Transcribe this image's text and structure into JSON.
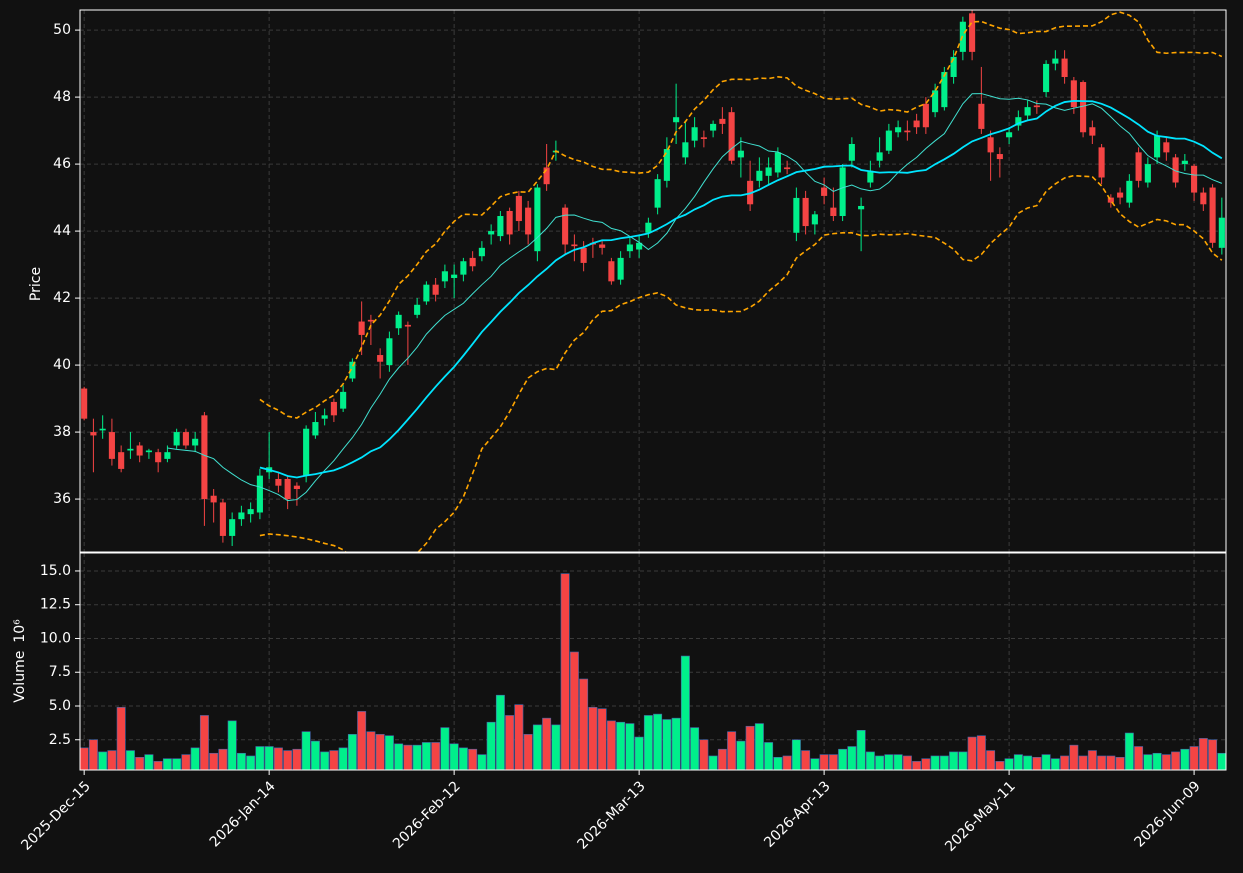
{
  "chart_data": {
    "type": "candlestick",
    "categories": [
      "2025-Dec-15",
      null,
      null,
      null,
      null,
      null,
      null,
      null,
      null,
      null,
      null,
      null,
      null,
      null,
      null,
      null,
      null,
      null,
      null,
      null,
      "2026-Jan-14",
      null,
      null,
      null,
      null,
      null,
      null,
      null,
      null,
      null,
      null,
      null,
      null,
      null,
      null,
      null,
      null,
      null,
      null,
      null,
      "2026-Feb-12",
      null,
      null,
      null,
      null,
      null,
      null,
      null,
      null,
      null,
      null,
      null,
      null,
      null,
      null,
      null,
      null,
      null,
      null,
      null,
      "2026-Mar-13",
      null,
      null,
      null,
      null,
      null,
      null,
      null,
      null,
      null,
      null,
      null,
      null,
      null,
      null,
      null,
      null,
      null,
      null,
      null,
      "2026-Apr-13",
      null,
      null,
      null,
      null,
      null,
      null,
      null,
      null,
      null,
      null,
      null,
      null,
      null,
      null,
      null,
      null,
      null,
      null,
      null,
      "2026-May-11",
      null,
      null,
      null,
      null,
      null,
      null,
      null,
      null,
      null,
      null,
      null,
      null,
      null,
      null,
      null,
      null,
      null,
      null,
      null,
      "2026-Jun-09",
      null,
      null,
      null
    ],
    "open": [
      39.3,
      38.0,
      38.05,
      38.0,
      37.4,
      37.45,
      37.6,
      37.4,
      37.4,
      37.2,
      37.6,
      38.0,
      37.6,
      38.5,
      36.1,
      35.9,
      34.9,
      35.4,
      35.55,
      35.6,
      36.8,
      36.6,
      36.6,
      36.4,
      36.7,
      37.9,
      38.4,
      38.9,
      38.7,
      39.6,
      41.3,
      41.35,
      40.3,
      40.0,
      41.1,
      41.2,
      41.5,
      41.9,
      42.4,
      42.5,
      42.6,
      42.7,
      43.2,
      43.25,
      43.9,
      43.85,
      44.6,
      45.05,
      44.7,
      43.4,
      45.9,
      46.35,
      44.7,
      43.6,
      43.5,
      43.65,
      43.6,
      43.1,
      42.55,
      43.4,
      43.45,
      43.95,
      44.7,
      45.5,
      47.25,
      46.2,
      46.7,
      46.8,
      47.0,
      47.35,
      47.55,
      46.2,
      45.5,
      45.5,
      45.65,
      45.75,
      45.9,
      43.95,
      44.99,
      44.2,
      45.3,
      44.7,
      44.45,
      46.1,
      44.65,
      45.45,
      46.1,
      46.4,
      46.95,
      47.0,
      47.3,
      47.8,
      47.55,
      47.7,
      48.6,
      49.35,
      50.5,
      47.8,
      46.8,
      46.3,
      46.8,
      47.15,
      47.45,
      47.75,
      48.15,
      49.0,
      49.15,
      48.5,
      48.45,
      47.1,
      46.5,
      45.0,
      45.15,
      44.85,
      46.35,
      45.45,
      46.2,
      46.65,
      46.2,
      46.0,
      45.95,
      45.15,
      45.3,
      43.5
    ],
    "high": [
      39.35,
      38.4,
      38.5,
      38.4,
      37.6,
      38.0,
      37.7,
      37.5,
      37.5,
      37.6,
      38.1,
      38.1,
      38.0,
      38.6,
      36.3,
      36.0,
      35.6,
      35.8,
      35.9,
      36.9,
      38.0,
      36.8,
      36.7,
      36.5,
      38.2,
      38.6,
      38.7,
      39.0,
      39.4,
      40.2,
      41.9,
      41.5,
      40.5,
      41.0,
      41.6,
      41.3,
      42.0,
      42.5,
      42.6,
      43.0,
      43.0,
      43.2,
      43.4,
      43.7,
      44.2,
      44.6,
      44.7,
      45.2,
      44.9,
      45.4,
      46.6,
      46.7,
      44.8,
      43.9,
      43.7,
      43.8,
      43.7,
      43.2,
      43.4,
      43.8,
      43.9,
      44.4,
      45.7,
      46.8,
      48.4,
      47.3,
      47.4,
      47.0,
      47.3,
      47.7,
      47.7,
      46.8,
      46.1,
      46.2,
      46.2,
      46.5,
      46.1,
      45.3,
      45.2,
      44.6,
      45.6,
      45.3,
      46.0,
      46.8,
      45.0,
      46.1,
      46.8,
      47.2,
      47.3,
      47.3,
      47.5,
      48.0,
      48.4,
      48.9,
      49.4,
      50.4,
      50.6,
      48.9,
      47.0,
      46.5,
      47.1,
      47.6,
      47.9,
      47.9,
      49.1,
      49.4,
      49.4,
      48.6,
      48.5,
      47.3,
      46.6,
      45.1,
      45.3,
      45.7,
      46.5,
      46.2,
      47.0,
      46.8,
      46.3,
      46.3,
      46.0,
      45.3,
      45.4,
      45.0
    ],
    "low": [
      38.35,
      36.8,
      37.8,
      37.0,
      36.8,
      37.2,
      37.1,
      37.2,
      36.8,
      37.1,
      37.5,
      37.5,
      37.4,
      35.2,
      35.3,
      34.7,
      34.6,
      35.2,
      35.3,
      35.4,
      36.6,
      36.2,
      35.7,
      35.8,
      36.5,
      37.8,
      38.2,
      38.3,
      38.6,
      39.5,
      40.3,
      40.6,
      39.6,
      39.8,
      40.9,
      40.0,
      41.4,
      41.8,
      41.9,
      42.3,
      42.0,
      42.5,
      42.8,
      43.1,
      43.6,
      43.7,
      43.6,
      44.0,
      43.6,
      43.1,
      45.2,
      46.1,
      43.3,
      43.1,
      42.8,
      43.2,
      43.3,
      42.4,
      42.4,
      43.2,
      43.2,
      43.8,
      44.5,
      45.3,
      46.6,
      46.0,
      46.5,
      46.5,
      46.8,
      46.9,
      46.0,
      45.6,
      44.6,
      45.3,
      45.4,
      45.6,
      45.7,
      43.7,
      43.9,
      43.9,
      44.8,
      44.3,
      44.3,
      45.9,
      43.4,
      45.3,
      45.9,
      46.3,
      46.8,
      46.7,
      46.9,
      46.9,
      47.4,
      47.6,
      48.4,
      49.1,
      49.1,
      46.9,
      45.5,
      45.6,
      46.6,
      47.0,
      47.3,
      47.5,
      48.0,
      48.8,
      48.4,
      47.5,
      46.8,
      46.6,
      45.4,
      44.7,
      44.8,
      44.7,
      45.3,
      45.3,
      46.0,
      46.1,
      45.3,
      45.8,
      44.9,
      44.6,
      43.5,
      43.3
    ],
    "close": [
      38.4,
      37.9,
      38.1,
      37.2,
      36.9,
      37.5,
      37.3,
      37.45,
      37.1,
      37.4,
      38.0,
      37.6,
      37.8,
      36.0,
      35.9,
      34.9,
      35.4,
      35.6,
      35.7,
      36.7,
      36.95,
      36.4,
      36.0,
      36.3,
      38.1,
      38.3,
      38.5,
      38.5,
      39.2,
      40.1,
      40.9,
      41.3,
      40.1,
      40.8,
      41.5,
      41.15,
      41.8,
      42.4,
      42.1,
      42.8,
      42.7,
      43.1,
      42.95,
      43.5,
      44.0,
      44.45,
      43.9,
      44.3,
      43.9,
      45.3,
      45.4,
      46.4,
      43.6,
      43.55,
      43.05,
      43.6,
      43.5,
      42.5,
      43.2,
      43.6,
      43.65,
      44.25,
      45.55,
      46.45,
      47.4,
      46.65,
      47.1,
      46.75,
      47.2,
      47.2,
      46.1,
      46.4,
      44.8,
      45.8,
      45.9,
      46.35,
      45.85,
      44.99,
      44.15,
      44.5,
      45.05,
      44.45,
      45.9,
      46.6,
      44.75,
      45.8,
      46.35,
      47.0,
      47.1,
      46.95,
      47.1,
      47.1,
      48.2,
      48.75,
      49.2,
      50.25,
      49.35,
      47.05,
      46.35,
      46.15,
      46.95,
      47.4,
      47.7,
      47.7,
      48.99,
      49.15,
      48.6,
      47.7,
      46.95,
      46.85,
      45.6,
      44.85,
      45.0,
      45.5,
      45.5,
      46.0,
      46.85,
      46.35,
      45.45,
      46.1,
      45.15,
      44.8,
      43.65,
      44.4
    ],
    "volume": [
      1.9,
      2.5,
      1.6,
      1.7,
      4.9,
      1.7,
      1.2,
      1.4,
      0.9,
      1.1,
      1.1,
      1.4,
      1.9,
      4.3,
      1.5,
      1.8,
      3.9,
      1.5,
      1.3,
      2.0,
      2.0,
      1.9,
      1.7,
      1.8,
      3.1,
      2.4,
      1.6,
      1.7,
      1.9,
      2.9,
      4.6,
      3.1,
      2.9,
      2.8,
      2.2,
      2.1,
      2.1,
      2.3,
      2.3,
      3.4,
      2.2,
      1.9,
      1.8,
      1.4,
      3.8,
      5.8,
      4.3,
      5.1,
      2.9,
      3.6,
      4.1,
      3.6,
      14.8,
      9.0,
      7.0,
      4.9,
      4.8,
      3.9,
      3.8,
      3.7,
      2.7,
      4.3,
      4.4,
      4.0,
      4.1,
      8.7,
      3.4,
      2.5,
      1.3,
      1.8,
      3.1,
      2.4,
      3.5,
      3.7,
      2.3,
      1.2,
      1.3,
      2.5,
      1.7,
      1.1,
      1.4,
      1.4,
      1.8,
      2.0,
      3.2,
      1.6,
      1.3,
      1.4,
      1.4,
      1.3,
      0.9,
      1.1,
      1.3,
      1.3,
      1.6,
      1.6,
      2.7,
      2.8,
      1.7,
      0.9,
      1.1,
      1.4,
      1.3,
      1.2,
      1.4,
      1.1,
      1.3,
      2.1,
      1.3,
      1.7,
      1.3,
      1.3,
      1.2,
      3.0,
      2.0,
      1.4,
      1.5,
      1.4,
      1.6,
      1.8,
      2.0,
      2.6,
      2.5,
      1.5
    ],
    "up_color": "#00ef8b",
    "down_color": "#f44444",
    "mav": [
      {
        "period": 10,
        "color": "#40e0d0",
        "width": 1
      },
      {
        "period": 20,
        "color": "#00e5ff",
        "width": 1.8
      }
    ],
    "bollinger": {
      "period": 20,
      "std": 2,
      "color": "#ffa500"
    },
    "xlim": [
      -0.45,
      123.45
    ],
    "ylim": [
      34.42,
      50.6
    ],
    "yticks": [
      36,
      38,
      40,
      42,
      44,
      46,
      48,
      50
    ],
    "y_label": "Price",
    "volume_ylim": [
      0.26,
      16.33
    ],
    "volume_yticks": [
      2.5,
      {
        "value": 5,
        "label": "5.0"
      },
      7.5,
      {
        "value": 10,
        "label": "10.0"
      },
      12.5,
      {
        "value": 15,
        "label": "15.0"
      }
    ],
    "volume_label": "Volume",
    "volume_offset_label": "10⁶",
    "grid": true
  }
}
